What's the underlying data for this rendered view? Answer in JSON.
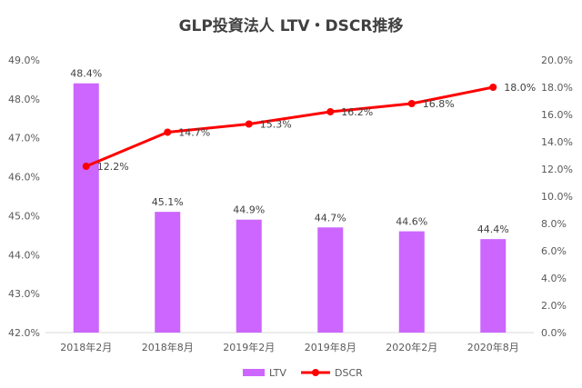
{
  "title": "GLP投資法人 LTV・DSCR推移",
  "chart_data": {
    "type": "bar+line",
    "title": "GLP投資法人 LTV・DSCR推移",
    "categories": [
      "2018年2月",
      "2018年8月",
      "2019年2月",
      "2019年8月",
      "2020年2月",
      "2020年8月"
    ],
    "series": [
      {
        "name": "LTV",
        "type": "bar",
        "axis": "left",
        "color": "#CC66FF",
        "values": [
          48.4,
          45.1,
          44.9,
          44.7,
          44.6,
          44.4
        ],
        "labels": [
          "48.4%",
          "45.1%",
          "44.9%",
          "44.7%",
          "44.6%",
          "44.4%"
        ]
      },
      {
        "name": "DSCR",
        "type": "line",
        "axis": "right",
        "color": "#FF0000",
        "values": [
          12.2,
          14.7,
          15.3,
          16.2,
          16.8,
          18.0
        ],
        "labels": [
          "12.2%",
          "14.7%",
          "15.3%",
          "16.2%",
          "16.8%",
          "18.0%"
        ]
      }
    ],
    "y_left": {
      "min": 42.0,
      "max": 49.0,
      "step": 1.0,
      "ticks": [
        "42.0%",
        "43.0%",
        "44.0%",
        "45.0%",
        "46.0%",
        "47.0%",
        "48.0%",
        "49.0%"
      ]
    },
    "y_right": {
      "min": 0.0,
      "max": 20.0,
      "step": 2.0,
      "ticks": [
        "0.0%",
        "2.0%",
        "4.0%",
        "6.0%",
        "8.0%",
        "10.0%",
        "12.0%",
        "14.0%",
        "16.0%",
        "18.0%",
        "20.0%"
      ]
    },
    "grid": false,
    "legend": "bottom"
  }
}
